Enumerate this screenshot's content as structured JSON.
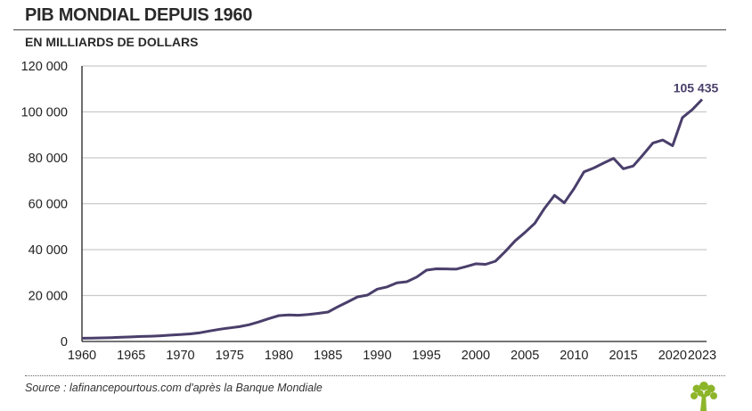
{
  "header": {
    "title": "PIB MONDIAL DEPUIS 1960",
    "subtitle": "EN MILLIARDS DE DOLLARS"
  },
  "footer": {
    "source": "Source : lafinancepourtous.com d'après la Banque Mondiale",
    "logo": "lafinancepourtous tree logo"
  },
  "chart_data": {
    "type": "line",
    "title": "PIB MONDIAL DEPUIS 1960",
    "subtitle": "EN MILLIARDS DE DOLLARS",
    "xlabel": "",
    "ylabel": "",
    "xlim": [
      1960,
      2023
    ],
    "ylim": [
      0,
      120000
    ],
    "grid": true,
    "line_color": "#4a3f6b",
    "x_ticks": [
      1960,
      1965,
      1970,
      1975,
      1980,
      1985,
      1990,
      1995,
      2000,
      2005,
      2010,
      2015,
      2020,
      2023
    ],
    "x_tick_labels": [
      "1960",
      "1965",
      "1970",
      "1975",
      "1980",
      "1985",
      "1990",
      "1995",
      "2000",
      "2005",
      "2010",
      "2015",
      "2020",
      "2023"
    ],
    "y_ticks": [
      0,
      20000,
      40000,
      60000,
      80000,
      100000,
      120000
    ],
    "y_tick_labels": [
      "0",
      "20 000",
      "40 000",
      "60 000",
      "80 000",
      "100 000",
      "120 000"
    ],
    "annotation": {
      "x": 2023,
      "y": 105435,
      "text": "105 435"
    },
    "series": [
      {
        "name": "PIB mondial",
        "x": [
          1960,
          1961,
          1962,
          1963,
          1964,
          1965,
          1966,
          1967,
          1968,
          1969,
          1970,
          1971,
          1972,
          1973,
          1974,
          1975,
          1976,
          1977,
          1978,
          1979,
          1980,
          1981,
          1982,
          1983,
          1984,
          1985,
          1986,
          1987,
          1988,
          1989,
          1990,
          1991,
          1992,
          1993,
          1994,
          1995,
          1996,
          1997,
          1998,
          1999,
          2000,
          2001,
          2002,
          2003,
          2004,
          2005,
          2006,
          2007,
          2008,
          2009,
          2010,
          2011,
          2012,
          2013,
          2014,
          2015,
          2016,
          2017,
          2018,
          2019,
          2020,
          2021,
          2022,
          2023
        ],
        "values": [
          1385,
          1440,
          1544,
          1667,
          1826,
          1987,
          2161,
          2299,
          2485,
          2744,
          2991,
          3288,
          3787,
          4599,
          5323,
          5918,
          6443,
          7284,
          8568,
          9987,
          11264,
          11590,
          11417,
          11747,
          12234,
          12828,
          15119,
          17249,
          19413,
          20191,
          22797,
          23773,
          25547,
          26010,
          28022,
          31056,
          31633,
          31614,
          31500,
          32590,
          33830,
          33581,
          34946,
          39132,
          43809,
          47455,
          51470,
          58006,
          63665,
          60381,
          66644,
          73868,
          75566,
          77699,
          79781,
          75223,
          76440,
          81313,
          86460,
          87730,
          85300,
          97500,
          101000,
          105435
        ]
      }
    ]
  }
}
